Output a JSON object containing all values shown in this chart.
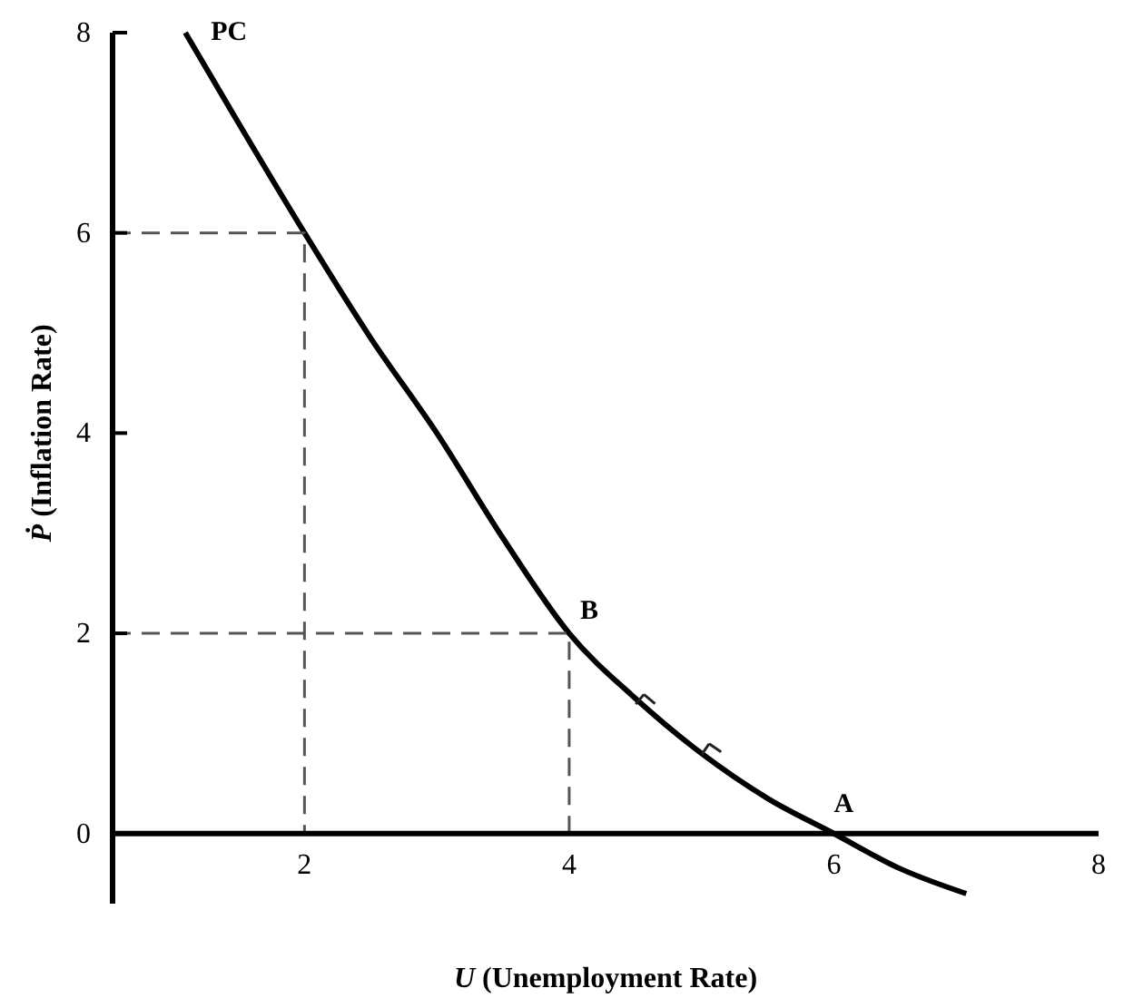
{
  "chart_data": {
    "type": "line",
    "xlabel": "U (Unemployment Rate)",
    "ylabel": "Ṗ (Inflation Rate)",
    "xlim": [
      0.55,
      8
    ],
    "ylim": [
      -0.7,
      8
    ],
    "xticks": [
      2,
      4,
      6,
      8
    ],
    "yticks": [
      0,
      2,
      4,
      6,
      8
    ],
    "grid": false,
    "marker": "none",
    "series": [
      {
        "color": "#000000",
        "x": [
          1.1,
          1.5,
          2,
          2.5,
          3,
          3.5,
          4,
          4.5,
          5,
          5.5,
          6,
          6.5,
          7
        ],
        "values": [
          8,
          7.1,
          6,
          4.95,
          4,
          2.95,
          2,
          1.35,
          0.8,
          0.35,
          0,
          -0.35,
          -0.6
        ]
      },
      {
        "color": "#555555",
        "line_style": "dashed",
        "x": [
          0.55,
          2,
          2
        ],
        "values": [
          6,
          6,
          0
        ]
      },
      {
        "color": "#555555",
        "line_style": "dashed",
        "x": [
          0.55,
          4,
          4
        ],
        "values": [
          2,
          2,
          0
        ]
      }
    ],
    "annotations": [
      {
        "text": "PC",
        "x": 1.1,
        "y": 8
      },
      {
        "text": "B",
        "x": 4,
        "y": 2
      },
      {
        "text": "A",
        "x": 6,
        "y": 0
      }
    ]
  }
}
